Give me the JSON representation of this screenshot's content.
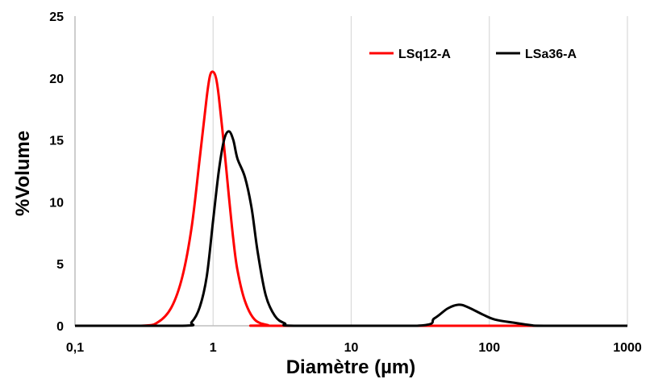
{
  "chart_data": {
    "type": "line",
    "xlabel": "Diamètre (µm)",
    "ylabel": "%Volume",
    "x_scale": "log",
    "xlim": [
      0.1,
      1000
    ],
    "ylim": [
      0,
      25
    ],
    "x_ticks": [
      "0,1",
      "1",
      "10",
      "100",
      "1000"
    ],
    "x_tick_values": [
      0.1,
      1,
      10,
      100,
      1000
    ],
    "y_ticks": [
      "0",
      "5",
      "10",
      "15",
      "20",
      "25"
    ],
    "y_tick_values": [
      0,
      5,
      10,
      15,
      20,
      25
    ],
    "grid": "vertical",
    "legend_position": "top-right",
    "series": [
      {
        "name": "LSq12-A",
        "color": "#ff0000",
        "points": [
          [
            0.1,
            0
          ],
          [
            0.3,
            0
          ],
          [
            0.4,
            0.3
          ],
          [
            0.5,
            1.5
          ],
          [
            0.6,
            4.0
          ],
          [
            0.7,
            8.0
          ],
          [
            0.8,
            13.5
          ],
          [
            0.9,
            18.5
          ],
          [
            0.95,
            20.2
          ],
          [
            1.0,
            20.5
          ],
          [
            1.05,
            20.0
          ],
          [
            1.1,
            18.5
          ],
          [
            1.2,
            14.5
          ],
          [
            1.3,
            10.5
          ],
          [
            1.4,
            7.0
          ],
          [
            1.5,
            4.5
          ],
          [
            1.7,
            2.0
          ],
          [
            2.0,
            0.5
          ],
          [
            2.5,
            0.05
          ],
          [
            3.0,
            0
          ],
          [
            1000,
            0
          ]
        ]
      },
      {
        "name": "LSa36-A",
        "color": "#000000",
        "points": [
          [
            0.1,
            0
          ],
          [
            0.6,
            0
          ],
          [
            0.7,
            0.3
          ],
          [
            0.8,
            1.5
          ],
          [
            0.9,
            4.0
          ],
          [
            1.0,
            8.5
          ],
          [
            1.1,
            12.5
          ],
          [
            1.2,
            15.0
          ],
          [
            1.3,
            15.7
          ],
          [
            1.4,
            15.0
          ],
          [
            1.5,
            13.5
          ],
          [
            1.7,
            12.0
          ],
          [
            1.9,
            9.5
          ],
          [
            2.1,
            6.0
          ],
          [
            2.4,
            2.5
          ],
          [
            2.8,
            0.8
          ],
          [
            3.3,
            0.2
          ],
          [
            4.0,
            0
          ],
          [
            30,
            0
          ],
          [
            40,
            0.6
          ],
          [
            50,
            1.4
          ],
          [
            60,
            1.7
          ],
          [
            70,
            1.5
          ],
          [
            90,
            0.9
          ],
          [
            110,
            0.5
          ],
          [
            150,
            0.25
          ],
          [
            200,
            0.05
          ],
          [
            250,
            0
          ],
          [
            1000,
            0
          ]
        ]
      }
    ]
  }
}
